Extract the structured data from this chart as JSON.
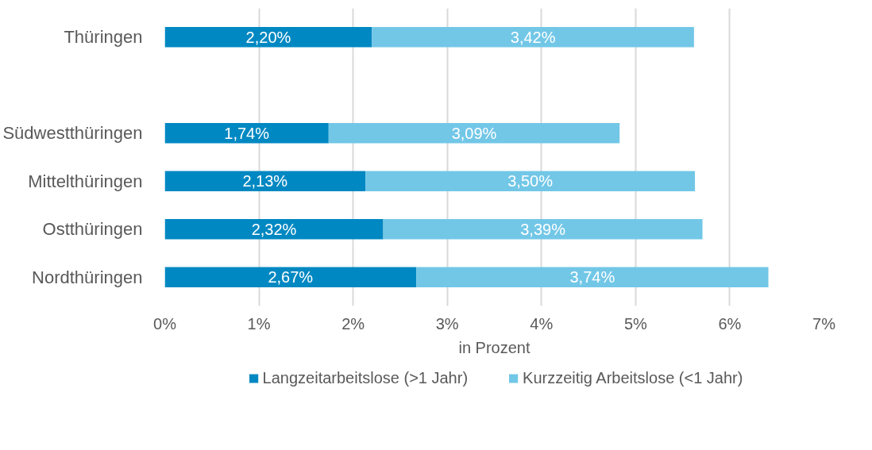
{
  "chart_data": {
    "type": "bar",
    "orientation": "horizontal",
    "stacked": true,
    "categories": [
      "Thüringen",
      null,
      "Südwestthüringen",
      "Mittelthüringen",
      "Ostthüringen",
      "Nordthüringen"
    ],
    "series": [
      {
        "name": "Langzeitarbeitslose (>1 Jahr)",
        "color": "#0088c2",
        "values": [
          2.2,
          null,
          1.74,
          2.13,
          2.32,
          2.67
        ],
        "value_labels": [
          "2,20%",
          null,
          "1,74%",
          "2,13%",
          "2,32%",
          "2,67%"
        ]
      },
      {
        "name": "Kurzzeitig Arbeitslose (<1 Jahr)",
        "color": "#72c7e7",
        "values": [
          3.42,
          null,
          3.09,
          3.5,
          3.39,
          3.74
        ],
        "value_labels": [
          "3,42%",
          null,
          "3,09%",
          "3,50%",
          "3,39%",
          "3,74%"
        ]
      }
    ],
    "xlabel": "in Prozent",
    "xlim": [
      0,
      7
    ],
    "xticks": [
      {
        "value": 0,
        "label": "0%"
      },
      {
        "value": 1,
        "label": "1%"
      },
      {
        "value": 2,
        "label": "2%"
      },
      {
        "value": 3,
        "label": "3%"
      },
      {
        "value": 4,
        "label": "4%"
      },
      {
        "value": 5,
        "label": "5%"
      },
      {
        "value": 6,
        "label": "6%"
      },
      {
        "value": 7,
        "label": "7%"
      }
    ],
    "grid": "x",
    "legend": "bottom"
  }
}
